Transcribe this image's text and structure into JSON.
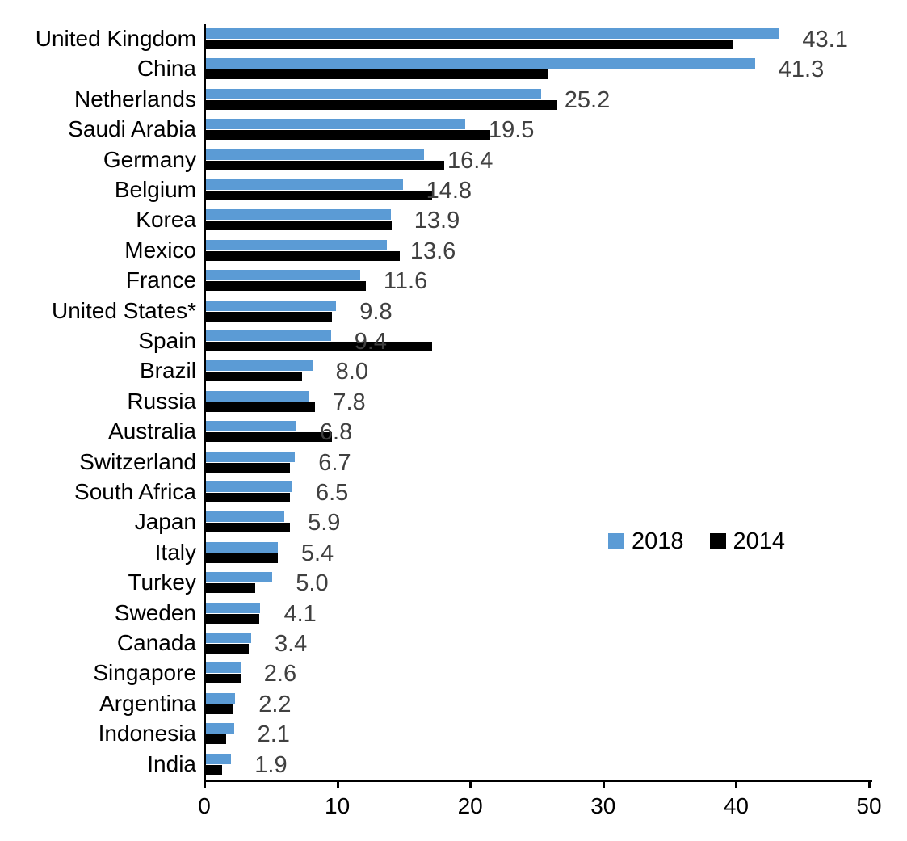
{
  "chart_data": {
    "type": "bar",
    "orientation": "horizontal",
    "title": "",
    "xlabel": "",
    "ylabel": "",
    "xlim": [
      0,
      50
    ],
    "x_ticks": [
      0,
      10,
      20,
      30,
      40,
      50
    ],
    "grid": false,
    "legend_position": "middle-right",
    "categories": [
      "United Kingdom",
      "China",
      "Netherlands",
      "Saudi Arabia",
      "Germany",
      "Belgium",
      "Korea",
      "Mexico",
      "France",
      "United States*",
      "Spain",
      "Brazil",
      "Russia",
      "Australia",
      "Switzerland",
      "South Africa",
      "Japan",
      "Italy",
      "Turkey",
      "Sweden",
      "Canada",
      "Singapore",
      "Argentina",
      "Indonesia",
      "India"
    ],
    "series": [
      {
        "name": "2018",
        "color": "#5B9BD5",
        "values": [
          43.1,
          41.3,
          25.2,
          19.5,
          16.4,
          14.8,
          13.9,
          13.6,
          11.6,
          9.8,
          9.4,
          8.0,
          7.8,
          6.8,
          6.7,
          6.5,
          5.9,
          5.4,
          5.0,
          4.1,
          3.4,
          2.6,
          2.2,
          2.1,
          1.9
        ]
      },
      {
        "name": "2014",
        "color": "#000000",
        "values": [
          39.6,
          25.7,
          26.4,
          21.4,
          17.9,
          17.0,
          14.0,
          14.6,
          12.0,
          9.5,
          17.0,
          7.2,
          8.2,
          9.5,
          6.3,
          6.3,
          6.3,
          5.4,
          3.7,
          4.0,
          3.2,
          2.7,
          2.0,
          1.5,
          1.2
        ]
      }
    ],
    "data_labels": {
      "on_series": "2018",
      "color": "#404040",
      "values": [
        "43.1",
        "41.3",
        "25.2",
        "19.5",
        "16.4",
        "14.8",
        "13.9",
        "13.6",
        "11.6",
        "9.8",
        "9.4",
        "8.0",
        "7.8",
        "6.8",
        "6.7",
        "6.5",
        "5.9",
        "5.4",
        "5.0",
        "4.1",
        "3.4",
        "2.6",
        "2.2",
        "2.1",
        "1.9"
      ]
    },
    "axis_color": "#000000"
  }
}
